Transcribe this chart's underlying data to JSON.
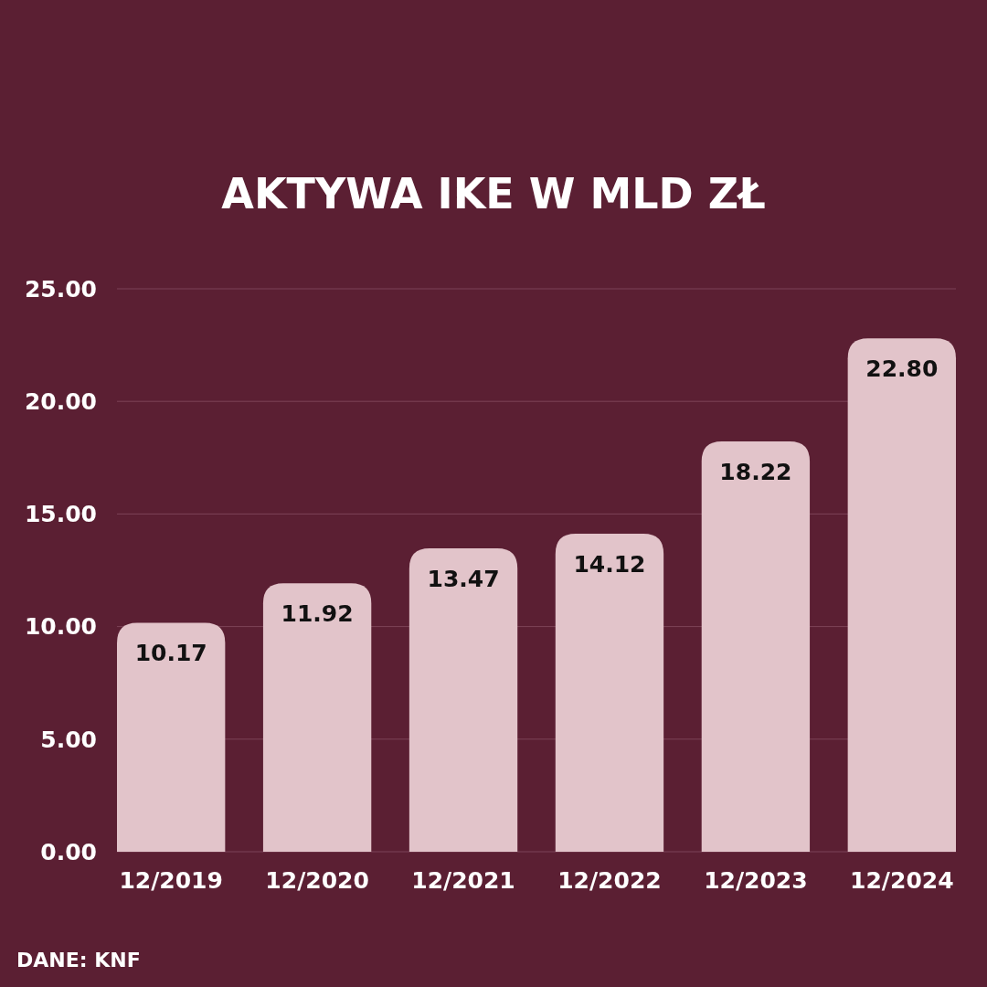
{
  "chart_data": {
    "type": "bar",
    "title": "AKTYWA IKE W MLD ZŁ",
    "categories": [
      "12/2019",
      "12/2020",
      "12/2021",
      "12/2022",
      "12/2023",
      "12/2024"
    ],
    "values": [
      10.17,
      11.92,
      13.47,
      14.12,
      18.22,
      22.8
    ],
    "value_labels": [
      "10.17",
      "11.92",
      "13.47",
      "14.12",
      "18.22",
      "22.80"
    ],
    "color": "#e2c4ca",
    "ylim": [
      0,
      25
    ],
    "yticks": [
      {
        "value": 0,
        "label": "0.00"
      },
      {
        "value": 5,
        "label": "5.00"
      },
      {
        "value": 10,
        "label": "10.00"
      },
      {
        "value": 15,
        "label": "15.00"
      },
      {
        "value": 20,
        "label": "20.00"
      },
      {
        "value": 25,
        "label": "25.00"
      }
    ],
    "grid": "y",
    "annotations": [
      "DANE: KNF"
    ]
  }
}
